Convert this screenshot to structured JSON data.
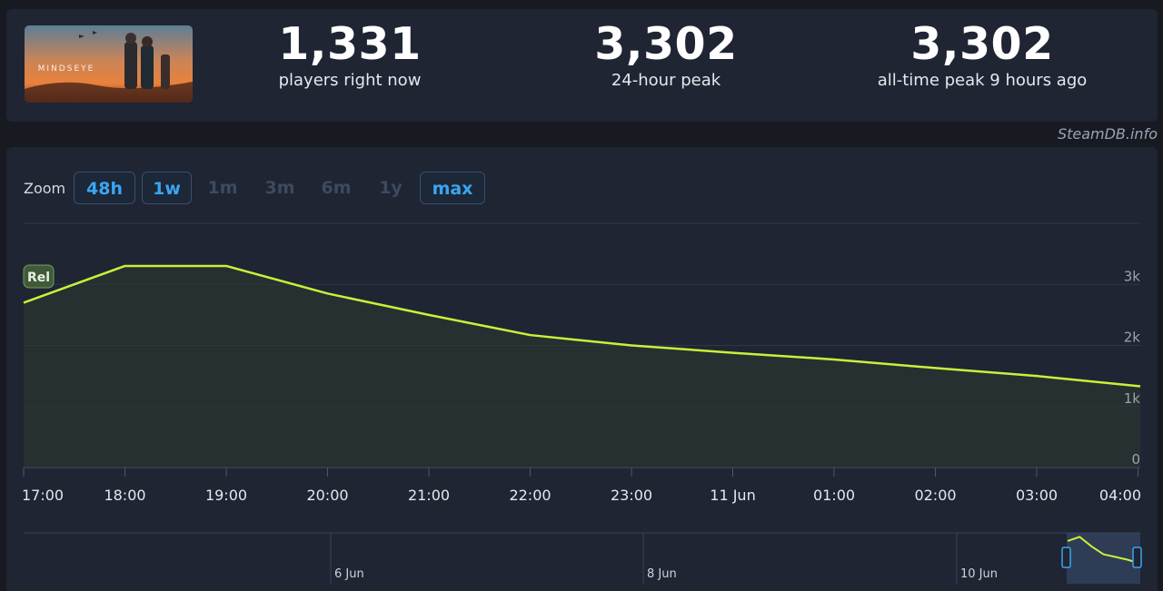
{
  "game": {
    "thumbnail_text": "MINDSEYE"
  },
  "stats": [
    {
      "value": "1,331",
      "label": "players right now"
    },
    {
      "value": "3,302",
      "label": "24-hour peak"
    },
    {
      "value": "3,302",
      "label": "all-time peak 9 hours ago"
    }
  ],
  "watermark": "SteamDB.info",
  "zoom": {
    "label": "Zoom",
    "buttons": [
      {
        "label": "48h",
        "active": true
      },
      {
        "label": "1w",
        "active": true
      },
      {
        "label": "1m",
        "active": false
      },
      {
        "label": "3m",
        "active": false
      },
      {
        "label": "6m",
        "active": false
      },
      {
        "label": "1y",
        "active": false
      },
      {
        "label": "max",
        "active": true
      }
    ]
  },
  "chart_data": {
    "type": "area",
    "x": [
      "16:55",
      "18:00",
      "19:00",
      "20:00",
      "21:00",
      "22:00",
      "23:00",
      "11 Jun",
      "01:00",
      "02:00",
      "03:00",
      "04:00"
    ],
    "values": [
      2700,
      3302,
      3302,
      2850,
      2500,
      2170,
      2000,
      1880,
      1770,
      1630,
      1500,
      1331
    ],
    "x_tick_labels": [
      "17:00",
      "18:00",
      "19:00",
      "20:00",
      "21:00",
      "22:00",
      "23:00",
      "11 Jun",
      "01:00",
      "02:00",
      "03:00",
      "04:00"
    ],
    "y_ticks": [
      0,
      1000,
      2000,
      3000
    ],
    "y_tick_labels": [
      "0",
      "1k",
      "2k",
      "3k"
    ],
    "ylim": [
      0,
      4000
    ],
    "line_color": "#c6f23a",
    "grid": true,
    "annotation": "Rel",
    "navigator": {
      "labels": [
        "6 Jun",
        "8 Jun",
        "10 Jun"
      ],
      "values": [
        3000,
        3302,
        2600,
        2000,
        1800,
        1600,
        1331
      ]
    }
  }
}
